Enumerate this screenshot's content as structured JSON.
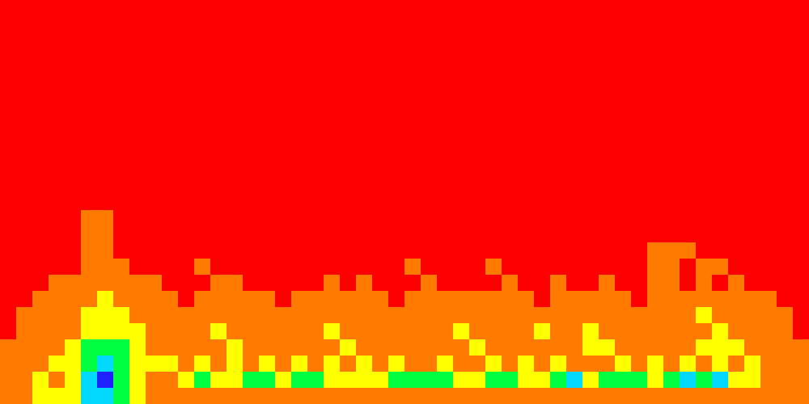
{
  "chart_data": {
    "type": "heatmap",
    "tick_labels": false,
    "grid": false,
    "xlim": [
      0,
      50
    ],
    "ylim": [
      0,
      25
    ],
    "zlim": [
      0,
      5
    ],
    "z": [
      [
        0,
        0,
        0,
        0,
        0,
        0,
        0,
        0,
        0,
        0,
        0,
        0,
        0,
        0,
        0,
        0,
        0,
        0,
        0,
        0,
        0,
        0,
        0,
        0,
        0,
        0,
        0,
        0,
        0,
        0,
        0,
        0,
        0,
        0,
        0,
        0,
        0,
        0,
        0,
        0,
        0,
        0,
        0,
        0,
        0,
        0,
        0,
        0,
        0,
        0
      ],
      [
        0,
        0,
        0,
        0,
        0,
        0,
        0,
        0,
        0,
        0,
        0,
        0,
        0,
        0,
        0,
        0,
        0,
        0,
        0,
        0,
        0,
        0,
        0,
        0,
        0,
        0,
        0,
        0,
        0,
        0,
        0,
        0,
        0,
        0,
        0,
        0,
        0,
        0,
        0,
        0,
        0,
        0,
        0,
        0,
        0,
        0,
        0,
        0,
        0,
        0
      ],
      [
        0,
        0,
        0,
        0,
        0,
        0,
        0,
        0,
        0,
        0,
        0,
        0,
        0,
        0,
        0,
        0,
        0,
        0,
        0,
        0,
        0,
        0,
        0,
        0,
        0,
        0,
        0,
        0,
        0,
        0,
        0,
        0,
        0,
        0,
        0,
        0,
        0,
        0,
        0,
        0,
        0,
        0,
        0,
        0,
        0,
        0,
        0,
        0,
        0,
        0
      ],
      [
        0,
        0,
        0,
        0,
        0,
        0,
        0,
        0,
        0,
        0,
        0,
        0,
        0,
        0,
        0,
        0,
        0,
        0,
        0,
        0,
        0,
        0,
        0,
        0,
        0,
        0,
        0,
        0,
        0,
        0,
        0,
        0,
        0,
        0,
        0,
        0,
        0,
        0,
        0,
        0,
        0,
        0,
        0,
        0,
        0,
        0,
        0,
        0,
        0,
        0
      ],
      [
        0,
        0,
        0,
        0,
        0,
        0,
        0,
        0,
        0,
        0,
        0,
        0,
        0,
        0,
        0,
        0,
        0,
        0,
        0,
        0,
        0,
        0,
        0,
        0,
        0,
        0,
        0,
        0,
        0,
        0,
        0,
        0,
        0,
        0,
        0,
        0,
        0,
        0,
        0,
        0,
        0,
        0,
        0,
        0,
        0,
        0,
        0,
        0,
        0,
        0
      ],
      [
        0,
        0,
        0,
        0,
        0,
        0,
        0,
        0,
        0,
        0,
        0,
        0,
        0,
        0,
        0,
        0,
        0,
        0,
        0,
        0,
        0,
        0,
        0,
        0,
        0,
        0,
        0,
        0,
        0,
        0,
        0,
        0,
        0,
        0,
        0,
        0,
        0,
        0,
        0,
        0,
        0,
        0,
        0,
        0,
        0,
        0,
        0,
        0,
        0,
        0
      ],
      [
        0,
        0,
        0,
        0,
        0,
        0,
        0,
        0,
        0,
        0,
        0,
        0,
        0,
        0,
        0,
        0,
        0,
        0,
        0,
        0,
        0,
        0,
        0,
        0,
        0,
        0,
        0,
        0,
        0,
        0,
        0,
        0,
        0,
        0,
        0,
        0,
        0,
        0,
        0,
        0,
        0,
        0,
        0,
        0,
        0,
        0,
        0,
        0,
        0,
        0
      ],
      [
        0,
        0,
        0,
        0,
        0,
        0,
        0,
        0,
        0,
        0,
        0,
        0,
        0,
        0,
        0,
        0,
        0,
        0,
        0,
        0,
        0,
        0,
        0,
        0,
        0,
        0,
        0,
        0,
        0,
        0,
        0,
        0,
        0,
        0,
        0,
        0,
        0,
        0,
        0,
        0,
        0,
        0,
        0,
        0,
        0,
        0,
        0,
        0,
        0,
        0
      ],
      [
        0,
        0,
        0,
        0,
        0,
        0,
        0,
        0,
        0,
        0,
        0,
        0,
        0,
        0,
        0,
        0,
        0,
        0,
        0,
        0,
        0,
        0,
        0,
        0,
        0,
        0,
        0,
        0,
        0,
        0,
        0,
        0,
        0,
        0,
        0,
        0,
        0,
        0,
        0,
        0,
        0,
        0,
        0,
        0,
        0,
        0,
        0,
        0,
        0,
        0
      ],
      [
        0,
        0,
        0,
        0,
        0,
        0,
        0,
        0,
        0,
        0,
        0,
        0,
        0,
        0,
        0,
        0,
        0,
        0,
        0,
        0,
        0,
        0,
        0,
        0,
        0,
        0,
        0,
        0,
        0,
        0,
        0,
        0,
        0,
        0,
        0,
        0,
        0,
        0,
        0,
        0,
        0,
        0,
        0,
        0,
        0,
        0,
        0,
        0,
        0,
        0
      ],
      [
        0,
        0,
        0,
        0,
        0,
        0,
        0,
        0,
        0,
        0,
        0,
        0,
        0,
        0,
        0,
        0,
        0,
        0,
        0,
        0,
        0,
        0,
        0,
        0,
        0,
        0,
        0,
        0,
        0,
        0,
        0,
        0,
        0,
        0,
        0,
        0,
        0,
        0,
        0,
        0,
        0,
        0,
        0,
        0,
        0,
        0,
        0,
        0,
        0,
        0
      ],
      [
        0,
        0,
        0,
        0,
        0,
        0,
        0,
        0,
        0,
        0,
        0,
        0,
        0,
        0,
        0,
        0,
        0,
        0,
        0,
        0,
        0,
        0,
        0,
        0,
        0,
        0,
        0,
        0,
        0,
        0,
        0,
        0,
        0,
        0,
        0,
        0,
        0,
        0,
        0,
        0,
        0,
        0,
        0,
        0,
        0,
        0,
        0,
        0,
        0,
        0
      ],
      [
        0,
        0,
        0,
        0,
        0,
        0,
        0,
        0,
        0,
        0,
        0,
        0,
        0,
        0,
        0,
        0,
        0,
        0,
        0,
        0,
        0,
        0,
        0,
        0,
        0,
        0,
        0,
        0,
        0,
        0,
        0,
        0,
        0,
        0,
        0,
        0,
        0,
        0,
        0,
        0,
        0,
        0,
        0,
        0,
        0,
        0,
        0,
        0,
        0,
        0
      ],
      [
        0,
        0,
        0,
        0,
        0,
        1,
        1,
        0,
        0,
        0,
        0,
        0,
        0,
        0,
        0,
        0,
        0,
        0,
        0,
        0,
        0,
        0,
        0,
        0,
        0,
        0,
        0,
        0,
        0,
        0,
        0,
        0,
        0,
        0,
        0,
        0,
        0,
        0,
        0,
        0,
        0,
        0,
        0,
        0,
        0,
        0,
        0,
        0,
        0,
        0
      ],
      [
        0,
        0,
        0,
        0,
        0,
        1,
        1,
        0,
        0,
        0,
        0,
        0,
        0,
        0,
        0,
        0,
        0,
        0,
        0,
        0,
        0,
        0,
        0,
        0,
        0,
        0,
        0,
        0,
        0,
        0,
        0,
        0,
        0,
        0,
        0,
        0,
        0,
        0,
        0,
        0,
        0,
        0,
        0,
        0,
        0,
        0,
        0,
        0,
        0,
        0
      ],
      [
        0,
        0,
        0,
        0,
        0,
        1,
        1,
        0,
        0,
        0,
        0,
        0,
        0,
        0,
        0,
        0,
        0,
        0,
        0,
        0,
        0,
        0,
        0,
        0,
        0,
        0,
        0,
        0,
        0,
        0,
        0,
        0,
        0,
        0,
        0,
        0,
        0,
        0,
        0,
        0,
        1,
        1,
        1,
        0,
        0,
        0,
        0,
        0,
        0,
        0
      ],
      [
        0,
        0,
        0,
        0,
        0,
        1,
        1,
        1,
        0,
        0,
        0,
        0,
        1,
        0,
        0,
        0,
        0,
        0,
        0,
        0,
        0,
        0,
        0,
        0,
        0,
        1,
        0,
        0,
        0,
        0,
        1,
        0,
        0,
        0,
        0,
        0,
        0,
        0,
        0,
        0,
        1,
        1,
        0,
        1,
        1,
        0,
        0,
        0,
        0,
        0
      ],
      [
        0,
        0,
        0,
        1,
        1,
        1,
        1,
        1,
        1,
        1,
        0,
        0,
        0,
        1,
        1,
        0,
        0,
        0,
        0,
        0,
        1,
        0,
        1,
        0,
        0,
        0,
        1,
        0,
        0,
        0,
        0,
        1,
        0,
        0,
        1,
        0,
        0,
        1,
        0,
        0,
        1,
        1,
        0,
        1,
        0,
        1,
        0,
        0,
        0,
        0
      ],
      [
        0,
        0,
        1,
        1,
        1,
        1,
        2,
        1,
        1,
        1,
        1,
        0,
        1,
        1,
        1,
        1,
        1,
        0,
        1,
        1,
        1,
        1,
        1,
        1,
        0,
        1,
        1,
        1,
        1,
        1,
        1,
        1,
        1,
        0,
        1,
        1,
        1,
        1,
        1,
        0,
        1,
        1,
        1,
        1,
        1,
        1,
        1,
        1,
        0,
        0
      ],
      [
        0,
        1,
        1,
        1,
        1,
        2,
        2,
        2,
        1,
        1,
        1,
        1,
        1,
        1,
        1,
        1,
        1,
        1,
        1,
        1,
        1,
        1,
        1,
        1,
        1,
        1,
        1,
        1,
        1,
        1,
        1,
        1,
        1,
        1,
        1,
        1,
        1,
        1,
        1,
        1,
        1,
        1,
        1,
        2,
        1,
        1,
        1,
        1,
        1,
        0
      ],
      [
        0,
        1,
        1,
        1,
        1,
        2,
        2,
        2,
        2,
        1,
        1,
        1,
        1,
        2,
        1,
        1,
        1,
        1,
        1,
        1,
        2,
        1,
        1,
        1,
        1,
        1,
        1,
        1,
        2,
        1,
        1,
        1,
        1,
        2,
        1,
        1,
        2,
        1,
        1,
        1,
        1,
        1,
        1,
        1,
        2,
        1,
        1,
        1,
        1,
        0
      ],
      [
        1,
        1,
        1,
        1,
        2,
        3,
        3,
        3,
        2,
        1,
        1,
        1,
        1,
        1,
        2,
        1,
        1,
        1,
        1,
        1,
        1,
        2,
        1,
        1,
        1,
        1,
        1,
        1,
        1,
        2,
        1,
        1,
        1,
        1,
        1,
        1,
        2,
        2,
        1,
        1,
        1,
        1,
        1,
        2,
        2,
        2,
        1,
        1,
        1,
        1
      ],
      [
        1,
        1,
        1,
        2,
        2,
        3,
        4,
        3,
        2,
        2,
        2,
        1,
        2,
        1,
        2,
        1,
        2,
        1,
        2,
        1,
        2,
        1,
        2,
        1,
        2,
        1,
        1,
        2,
        1,
        1,
        2,
        1,
        2,
        1,
        2,
        1,
        1,
        1,
        2,
        1,
        2,
        1,
        2,
        1,
        2,
        1,
        2,
        1,
        1,
        1
      ],
      [
        1,
        1,
        2,
        1,
        2,
        4,
        5,
        3,
        2,
        1,
        1,
        2,
        3,
        2,
        2,
        3,
        3,
        2,
        3,
        3,
        2,
        2,
        2,
        2,
        3,
        3,
        3,
        3,
        2,
        2,
        3,
        3,
        2,
        2,
        3,
        4,
        2,
        3,
        3,
        3,
        2,
        3,
        4,
        3,
        4,
        2,
        2,
        1,
        1,
        1
      ],
      [
        1,
        1,
        2,
        2,
        2,
        4,
        4,
        3,
        2,
        1,
        1,
        1,
        1,
        1,
        1,
        1,
        1,
        1,
        1,
        1,
        1,
        1,
        1,
        1,
        1,
        1,
        1,
        1,
        1,
        1,
        1,
        1,
        1,
        1,
        1,
        1,
        1,
        1,
        1,
        1,
        1,
        1,
        1,
        1,
        1,
        1,
        1,
        1,
        1,
        1
      ]
    ]
  }
}
